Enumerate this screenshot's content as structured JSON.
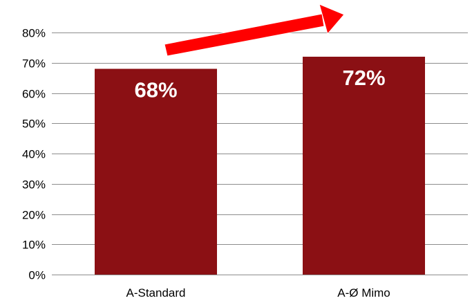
{
  "chart_data": {
    "type": "bar",
    "categories": [
      "A-Standard",
      "A-Ø Mimo"
    ],
    "values": [
      68,
      72
    ],
    "data_labels": [
      "68%",
      "72%"
    ],
    "ylim": [
      0,
      80
    ],
    "yticks": [
      0,
      10,
      20,
      30,
      40,
      50,
      60,
      70,
      80
    ],
    "ytick_labels": [
      "0%",
      "10%",
      "20%",
      "30%",
      "40%",
      "50%",
      "60%",
      "70%",
      "80%"
    ],
    "grid": true,
    "legend": "none",
    "colors": {
      "bar": "#8b1014",
      "gridline": "#8c8c8c",
      "arrow": "#ff0000",
      "arrow_outline": "#ffffff"
    },
    "annotations": [
      {
        "type": "arrow",
        "meaning": "increase",
        "icon": "up-right-arrow-icon"
      }
    ]
  }
}
